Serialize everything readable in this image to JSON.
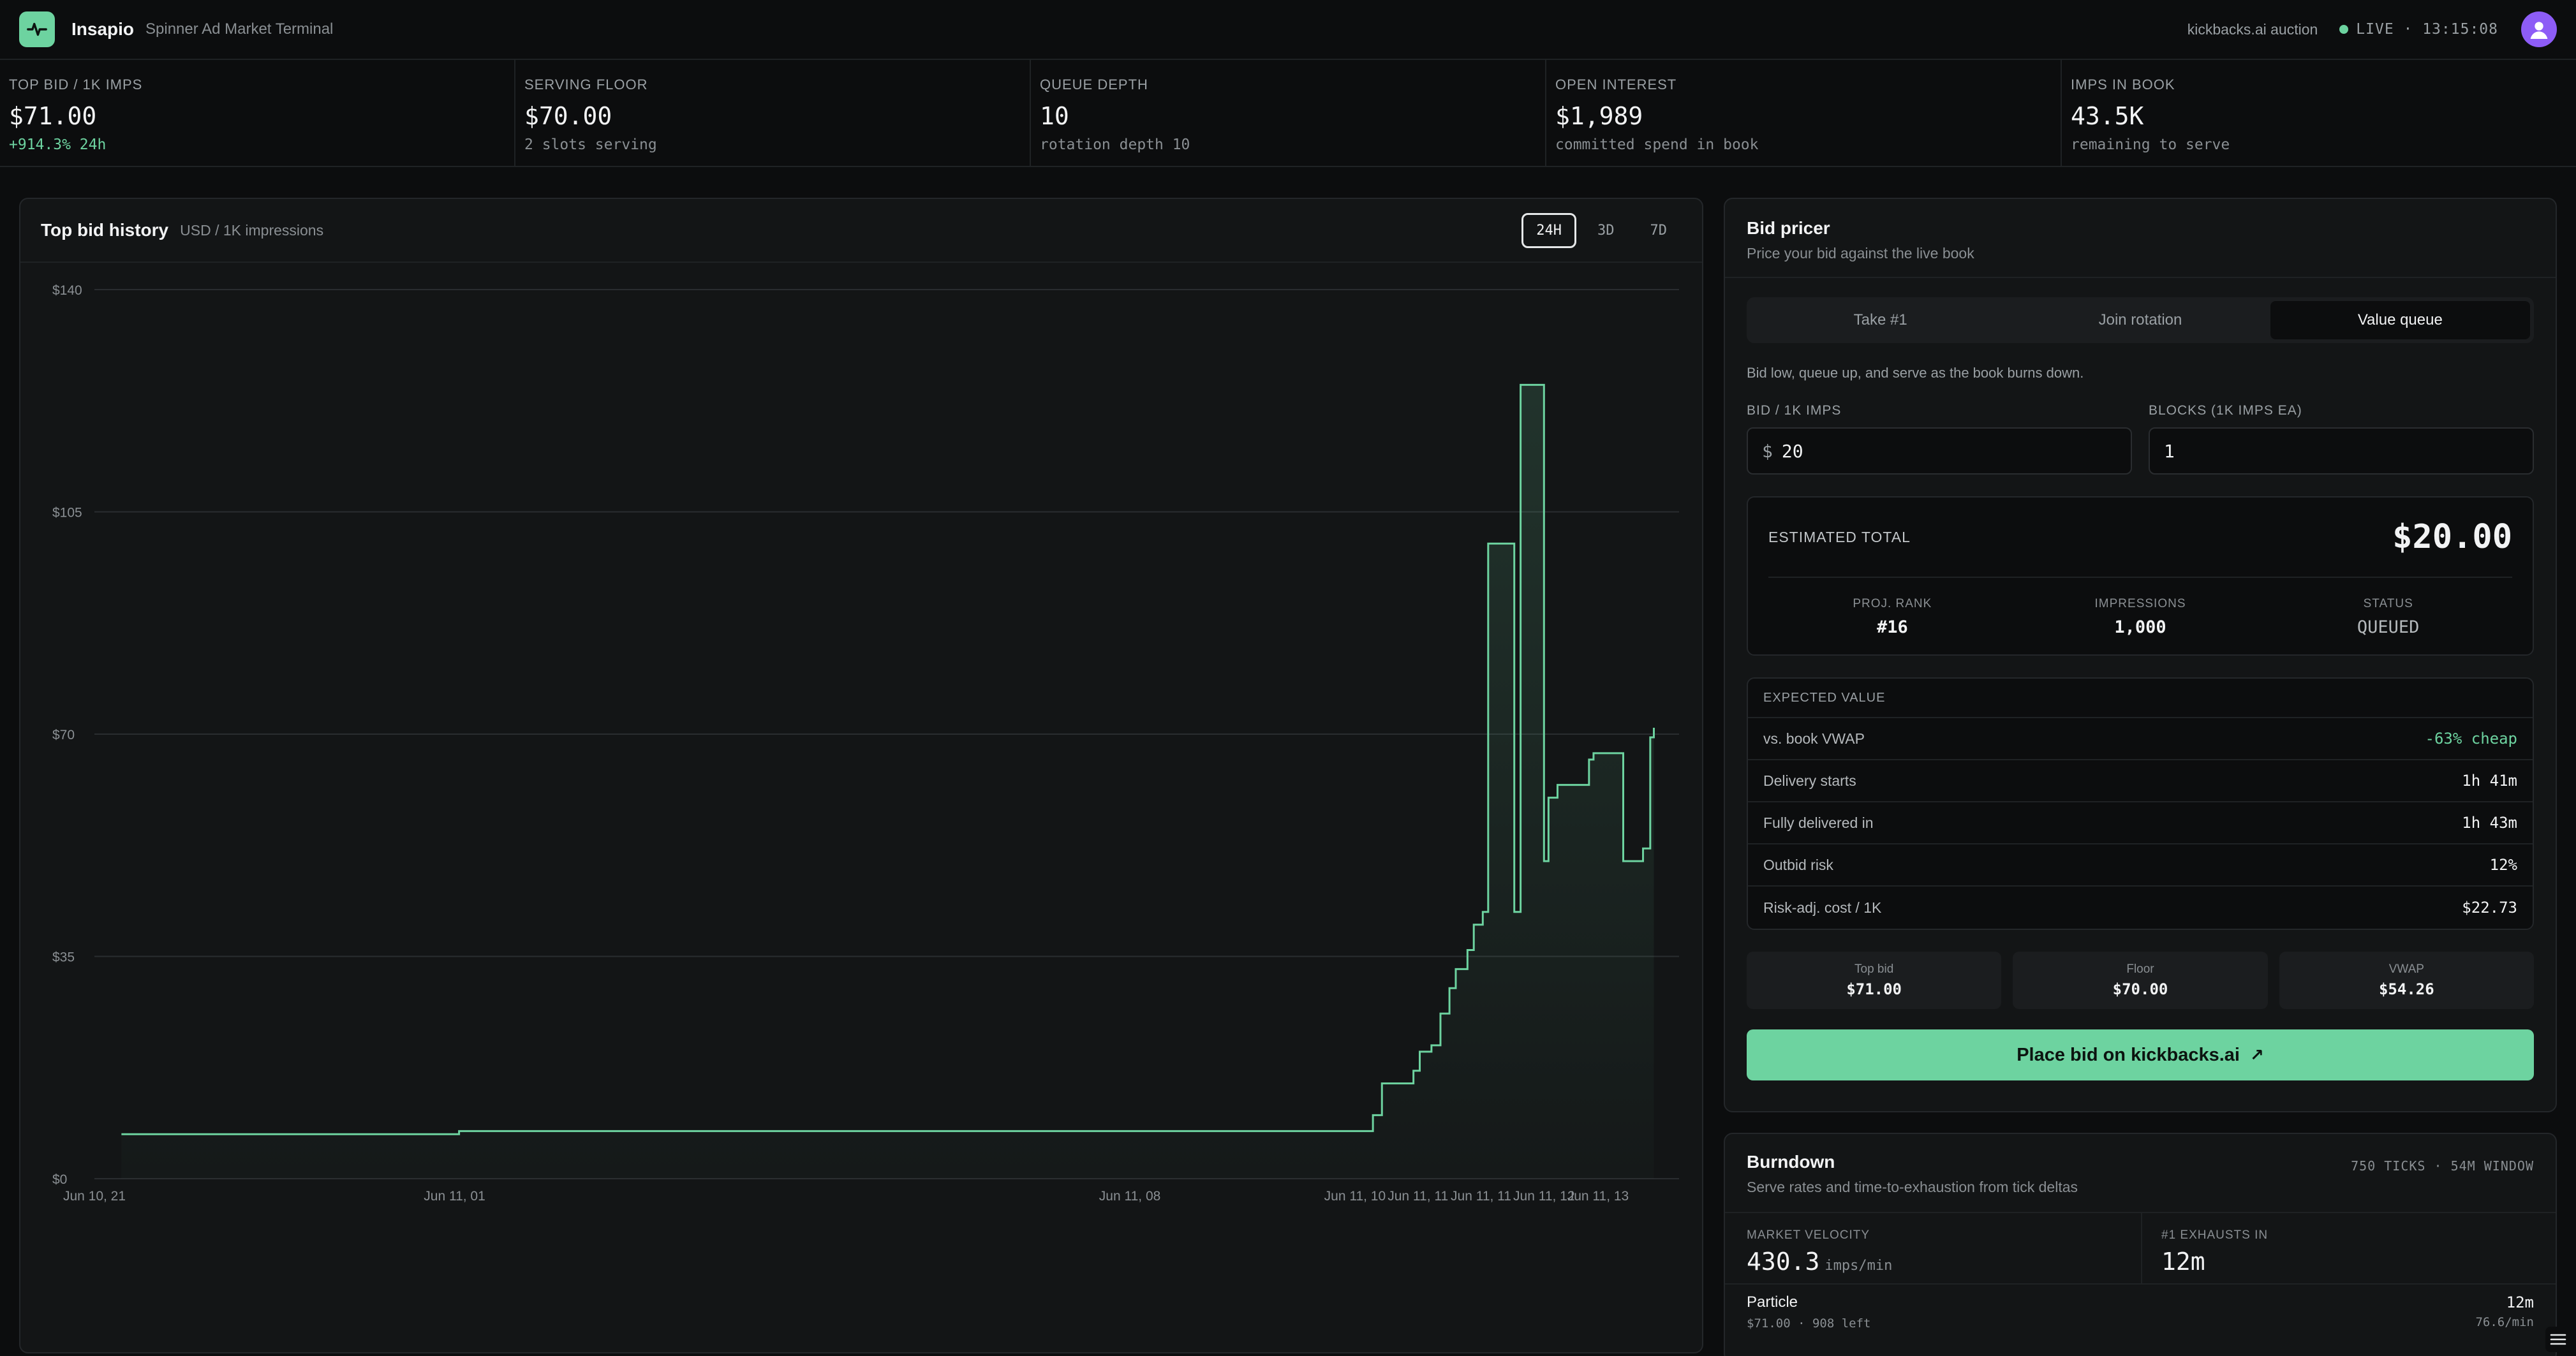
{
  "app": {
    "name": "Insapio",
    "subtitle": "Spinner Ad Market Terminal"
  },
  "topbar": {
    "auction": "kickbacks.ai auction",
    "live": "LIVE · 13:15:08"
  },
  "stats": [
    {
      "label": "TOP BID / 1K IMPS",
      "value": "$71.00",
      "sub": "+914.3% 24h"
    },
    {
      "label": "SERVING FLOOR",
      "value": "$70.00",
      "sub": "2 slots serving"
    },
    {
      "label": "QUEUE DEPTH",
      "value": "10",
      "sub": "rotation depth 10"
    },
    {
      "label": "OPEN INTEREST",
      "value": "$1,989",
      "sub": "committed spend in book"
    },
    {
      "label": "IMPS IN BOOK",
      "value": "43.5K",
      "sub": "remaining to serve"
    }
  ],
  "chart_panel": {
    "title": "Top bid history",
    "unit": "USD / 1K impressions",
    "ranges": [
      "24H",
      "3D",
      "7D"
    ],
    "active_range": "24H"
  },
  "chart_data": {
    "type": "line",
    "title": "Top bid history",
    "ylabel": "USD / 1K impressions",
    "ylim": [
      0,
      140
    ],
    "yticks": [
      "$0",
      "$35",
      "$70",
      "$105",
      "$140"
    ],
    "ytick_values": [
      0,
      35,
      70,
      105,
      140
    ],
    "xlim": [
      0,
      24
    ],
    "xticks": [
      {
        "label": "Jun 10, 21",
        "t": 0
      },
      {
        "label": "Jun 11, 01",
        "t": 4
      },
      {
        "label": "Jun 11, 08",
        "t": 11.5
      },
      {
        "label": "Jun 11, 10",
        "t": 14
      },
      {
        "label": "Jun 11, 11",
        "t": 14.7
      },
      {
        "label": "Jun 11, 11",
        "t": 15.4
      },
      {
        "label": "Jun 11, 12",
        "t": 16.1
      },
      {
        "label": "Jun 11, 13",
        "t": 16.7
      }
    ],
    "step_series": [
      [
        0.3,
        7.0
      ],
      [
        4.0,
        7.0
      ],
      [
        4.05,
        7.5
      ],
      [
        14.05,
        7.5
      ],
      [
        14.2,
        10.0
      ],
      [
        14.3,
        15.0
      ],
      [
        14.55,
        15.0
      ],
      [
        14.65,
        17.0
      ],
      [
        14.72,
        20.0
      ],
      [
        14.85,
        21.0
      ],
      [
        14.95,
        26.0
      ],
      [
        15.05,
        30.0
      ],
      [
        15.12,
        33.0
      ],
      [
        15.25,
        36.0
      ],
      [
        15.32,
        40.0
      ],
      [
        15.42,
        42.0
      ],
      [
        15.48,
        100.0
      ],
      [
        15.77,
        42.0
      ],
      [
        15.84,
        125.0
      ],
      [
        16.1,
        50.0
      ],
      [
        16.15,
        60.0
      ],
      [
        16.25,
        62.0
      ],
      [
        16.5,
        62.0
      ],
      [
        16.6,
        66.0
      ],
      [
        16.65,
        67.0
      ],
      [
        16.95,
        67.0
      ],
      [
        16.98,
        50.0
      ],
      [
        17.15,
        50.0
      ],
      [
        17.2,
        52.0
      ],
      [
        17.28,
        69.5
      ],
      [
        17.32,
        71.0
      ]
    ]
  },
  "pricer": {
    "title": "Bid pricer",
    "subtitle": "Price your bid against the live book",
    "tabs": [
      "Take #1",
      "Join rotation",
      "Value queue"
    ],
    "active_tab": "Value queue",
    "description": "Bid low, queue up, and serve as the book burns down.",
    "bid_label": "BID / 1K IMPS",
    "bid_prefix": "$",
    "bid_value": "20",
    "blocks_label": "BLOCKS (1K IMPS EA)",
    "blocks_value": "1",
    "estimate_label": "ESTIMATED TOTAL",
    "estimate_value": "$20.00",
    "proj_rank_label": "PROJ. RANK",
    "proj_rank_value": "#16",
    "impressions_label": "IMPRESSIONS",
    "impressions_value": "1,000",
    "status_label": "STATUS",
    "status_value": "QUEUED",
    "ev_label": "EXPECTED VALUE",
    "ev_rows": [
      {
        "key": "vs. book VWAP",
        "value": "-63% cheap"
      },
      {
        "key": "Delivery starts",
        "value": "1h 41m"
      },
      {
        "key": "Fully delivered in",
        "value": "1h 43m"
      },
      {
        "key": "Outbid risk",
        "value": "12%"
      },
      {
        "key": "Risk-adj. cost / 1K",
        "value": "$22.73"
      }
    ],
    "refs": [
      {
        "label": "Top bid",
        "value": "$71.00"
      },
      {
        "label": "Floor",
        "value": "$70.00"
      },
      {
        "label": "VWAP",
        "value": "$54.26"
      }
    ],
    "cta": "Place bid on kickbacks.ai",
    "cta_arrow": "↗"
  },
  "burndown": {
    "title": "Burndown",
    "subtitle": "Serve rates and time-to-exhaustion from tick deltas",
    "meta": "750 TICKS · 54M WINDOW",
    "velocity_label": "MARKET VELOCITY",
    "velocity_value": "430.3",
    "velocity_unit": "imps/min",
    "exhaust_label": "#1 EXHAUSTS IN",
    "exhaust_value": "12m",
    "row": {
      "name": "Particle",
      "sub": "$71.00 · 908 left",
      "time": "12m",
      "rate": "76.6/min"
    }
  },
  "colors": {
    "accent": "#6dd3a0",
    "background": "#0c0d0e",
    "panel": "#131516",
    "avatar": "#8d5cf6"
  }
}
